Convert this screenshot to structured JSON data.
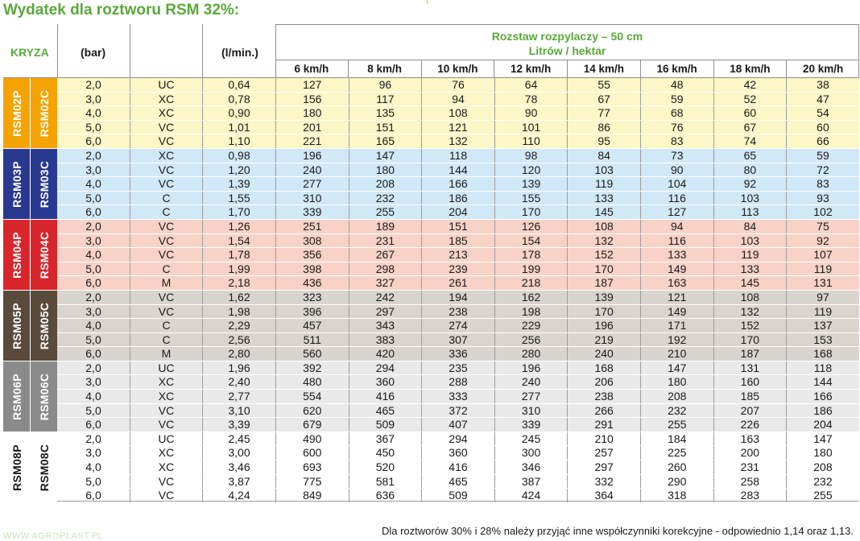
{
  "title": "Wydatek dla roztworu RSM 32%:",
  "header": {
    "kryza": "KRYZA",
    "bar": "(bar)",
    "lmin": "(l/min.)",
    "rozstaw_line1": "Rozstaw rozpylaczy – 50 cm",
    "rozstaw_line2": "Litrów / hektar",
    "speeds": [
      "6 km/h",
      "8 km/h",
      "10 km/h",
      "12 km/h",
      "14 km/h",
      "16 km/h",
      "18 km/h",
      "20 km/h"
    ]
  },
  "groups": [
    {
      "p": "RSM02P",
      "c": "RSM02C",
      "color_p": "#f5a300",
      "color_c": "#f5a300",
      "row_class": "g-yellow",
      "rows": [
        {
          "bar": "2,0",
          "typ": "UC",
          "l": "0,64",
          "v": [
            "127",
            "96",
            "76",
            "64",
            "55",
            "48",
            "42",
            "38"
          ]
        },
        {
          "bar": "3,0",
          "typ": "XC",
          "l": "0,78",
          "v": [
            "156",
            "117",
            "94",
            "78",
            "67",
            "59",
            "52",
            "47"
          ]
        },
        {
          "bar": "4,0",
          "typ": "XC",
          "l": "0,90",
          "v": [
            "180",
            "135",
            "108",
            "90",
            "77",
            "68",
            "60",
            "54"
          ]
        },
        {
          "bar": "5,0",
          "typ": "VC",
          "l": "1,01",
          "v": [
            "201",
            "151",
            "121",
            "101",
            "86",
            "76",
            "67",
            "60"
          ]
        },
        {
          "bar": "6,0",
          "typ": "VC",
          "l": "1,10",
          "v": [
            "221",
            "165",
            "132",
            "110",
            "95",
            "83",
            "74",
            "66"
          ]
        }
      ]
    },
    {
      "p": "RSM03P",
      "c": "RSM03C",
      "color_p": "#2a3990",
      "color_c": "#2a3990",
      "row_class": "g-blue",
      "rows": [
        {
          "bar": "2,0",
          "typ": "XC",
          "l": "0,98",
          "v": [
            "196",
            "147",
            "118",
            "98",
            "84",
            "73",
            "65",
            "59"
          ]
        },
        {
          "bar": "3,0",
          "typ": "VC",
          "l": "1,20",
          "v": [
            "240",
            "180",
            "144",
            "120",
            "103",
            "90",
            "80",
            "72"
          ]
        },
        {
          "bar": "4,0",
          "typ": "VC",
          "l": "1,39",
          "v": [
            "277",
            "208",
            "166",
            "139",
            "119",
            "104",
            "92",
            "83"
          ]
        },
        {
          "bar": "5,0",
          "typ": "C",
          "l": "1,55",
          "v": [
            "310",
            "232",
            "186",
            "155",
            "133",
            "116",
            "103",
            "93"
          ]
        },
        {
          "bar": "6,0",
          "typ": "C",
          "l": "1,70",
          "v": [
            "339",
            "255",
            "204",
            "170",
            "145",
            "127",
            "113",
            "102"
          ]
        }
      ]
    },
    {
      "p": "RSM04P",
      "c": "RSM04C",
      "color_p": "#d9262c",
      "color_c": "#d9262c",
      "row_class": "g-red",
      "rows": [
        {
          "bar": "2,0",
          "typ": "VC",
          "l": "1,26",
          "v": [
            "251",
            "189",
            "151",
            "126",
            "108",
            "94",
            "84",
            "75"
          ]
        },
        {
          "bar": "3,0",
          "typ": "VC",
          "l": "1,54",
          "v": [
            "308",
            "231",
            "185",
            "154",
            "132",
            "116",
            "103",
            "92"
          ]
        },
        {
          "bar": "4,0",
          "typ": "VC",
          "l": "1,78",
          "v": [
            "356",
            "267",
            "213",
            "178",
            "152",
            "133",
            "119",
            "107"
          ]
        },
        {
          "bar": "5,0",
          "typ": "C",
          "l": "1,99",
          "v": [
            "398",
            "298",
            "239",
            "199",
            "170",
            "149",
            "133",
            "119"
          ]
        },
        {
          "bar": "6,0",
          "typ": "M",
          "l": "2,18",
          "v": [
            "436",
            "327",
            "261",
            "218",
            "187",
            "163",
            "145",
            "131"
          ]
        }
      ]
    },
    {
      "p": "RSM05P",
      "c": "RSM05C",
      "color_p": "#5a4a3c",
      "color_c": "#5a4a3c",
      "row_class": "g-brown",
      "rows": [
        {
          "bar": "2,0",
          "typ": "VC",
          "l": "1,62",
          "v": [
            "323",
            "242",
            "194",
            "162",
            "139",
            "121",
            "108",
            "97"
          ]
        },
        {
          "bar": "3,0",
          "typ": "VC",
          "l": "1,98",
          "v": [
            "396",
            "297",
            "238",
            "198",
            "170",
            "149",
            "132",
            "119"
          ]
        },
        {
          "bar": "4,0",
          "typ": "C",
          "l": "2,29",
          "v": [
            "457",
            "343",
            "274",
            "229",
            "196",
            "171",
            "152",
            "137"
          ]
        },
        {
          "bar": "5,0",
          "typ": "C",
          "l": "2,56",
          "v": [
            "511",
            "383",
            "307",
            "256",
            "219",
            "192",
            "170",
            "153"
          ]
        },
        {
          "bar": "6,0",
          "typ": "M",
          "l": "2,80",
          "v": [
            "560",
            "420",
            "336",
            "280",
            "240",
            "210",
            "187",
            "168"
          ]
        }
      ]
    },
    {
      "p": "RSM06P",
      "c": "RSM06C",
      "color_p": "#8a8a8a",
      "color_c": "#8a8a8a",
      "row_class": "g-grey",
      "rows": [
        {
          "bar": "2,0",
          "typ": "UC",
          "l": "1,96",
          "v": [
            "392",
            "294",
            "235",
            "196",
            "168",
            "147",
            "131",
            "118"
          ]
        },
        {
          "bar": "3,0",
          "typ": "XC",
          "l": "2,40",
          "v": [
            "480",
            "360",
            "288",
            "240",
            "206",
            "180",
            "160",
            "144"
          ]
        },
        {
          "bar": "4,0",
          "typ": "XC",
          "l": "2,77",
          "v": [
            "554",
            "416",
            "333",
            "277",
            "238",
            "208",
            "185",
            "166"
          ]
        },
        {
          "bar": "5,0",
          "typ": "VC",
          "l": "3,10",
          "v": [
            "620",
            "465",
            "372",
            "310",
            "266",
            "232",
            "207",
            "186"
          ]
        },
        {
          "bar": "6,0",
          "typ": "VC",
          "l": "3,39",
          "v": [
            "679",
            "509",
            "407",
            "339",
            "291",
            "255",
            "226",
            "204"
          ]
        }
      ]
    },
    {
      "p": "RSM08P",
      "c": "RSM08C",
      "color_p": "#ffffff",
      "color_c": "#ffffff",
      "row_class": "g-white",
      "rows": [
        {
          "bar": "2,0",
          "typ": "UC",
          "l": "2,45",
          "v": [
            "490",
            "367",
            "294",
            "245",
            "210",
            "184",
            "163",
            "147"
          ]
        },
        {
          "bar": "3,0",
          "typ": "XC",
          "l": "3,00",
          "v": [
            "600",
            "450",
            "360",
            "300",
            "257",
            "225",
            "200",
            "180"
          ]
        },
        {
          "bar": "4,0",
          "typ": "XC",
          "l": "3,46",
          "v": [
            "693",
            "520",
            "416",
            "346",
            "297",
            "260",
            "231",
            "208"
          ]
        },
        {
          "bar": "5,0",
          "typ": "VC",
          "l": "3,87",
          "v": [
            "775",
            "581",
            "465",
            "387",
            "332",
            "290",
            "258",
            "232"
          ]
        },
        {
          "bar": "6,0",
          "typ": "VC",
          "l": "4,24",
          "v": [
            "849",
            "636",
            "509",
            "424",
            "364",
            "318",
            "283",
            "255"
          ]
        }
      ]
    }
  ],
  "footnote": "Dla roztworów 30% i 28% należy przyjąć inne współczynniki korekcyjne - odpowiednio 1,14 oraz 1,13.",
  "watermark": "WWW.AGROPLAST.PL"
}
